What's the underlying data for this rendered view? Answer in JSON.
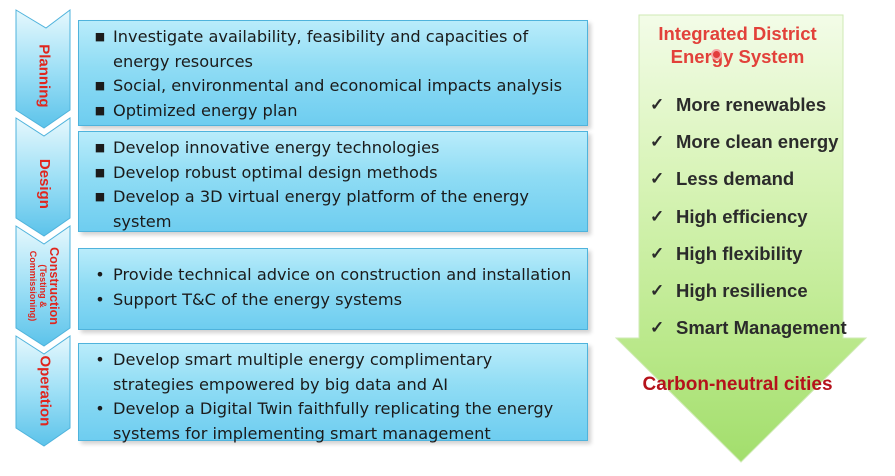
{
  "stages": [
    {
      "label": "Planning",
      "sub": ""
    },
    {
      "label": "Design",
      "sub": ""
    },
    {
      "label": "Construction",
      "sub": "(Testing &\nCommissioning)"
    },
    {
      "label": "Operation",
      "sub": ""
    }
  ],
  "boxes": [
    {
      "bullet": "■",
      "items": [
        "Investigate availability, feasibility and capacities of energy resources",
        "Social, environmental and economical impacts analysis",
        "Optimized energy plan"
      ]
    },
    {
      "bullet": "■",
      "items": [
        "Develop innovative energy technologies",
        "Develop robust optimal design methods",
        "Develop a 3D virtual energy platform of the energy system"
      ]
    },
    {
      "bullet": "•",
      "items": [
        "Provide technical advice on construction and installation",
        "Support T&C of the energy systems"
      ]
    },
    {
      "bullet": "•",
      "items": [
        "Develop smart multiple energy complimentary strategies empowered by big data and AI",
        "Develop a Digital Twin faithfully replicating the energy systems for implementing smart management"
      ]
    }
  ],
  "arrow": {
    "title": "Integrated District Energy System",
    "check_symbol": "✓",
    "items": [
      "More renewables",
      "More clean energy",
      "Less demand",
      "High efficiency",
      "High flexibility",
      "High resilience",
      "Smart Management"
    ],
    "outcome": "Carbon-neutral cities"
  },
  "colors": {
    "stage_text": "#e0261e",
    "box_fill": "#8fdcf4",
    "arrow_fill": "#c9ee9a",
    "title_text": "#e2413a",
    "outcome_text": "#b5121b"
  }
}
